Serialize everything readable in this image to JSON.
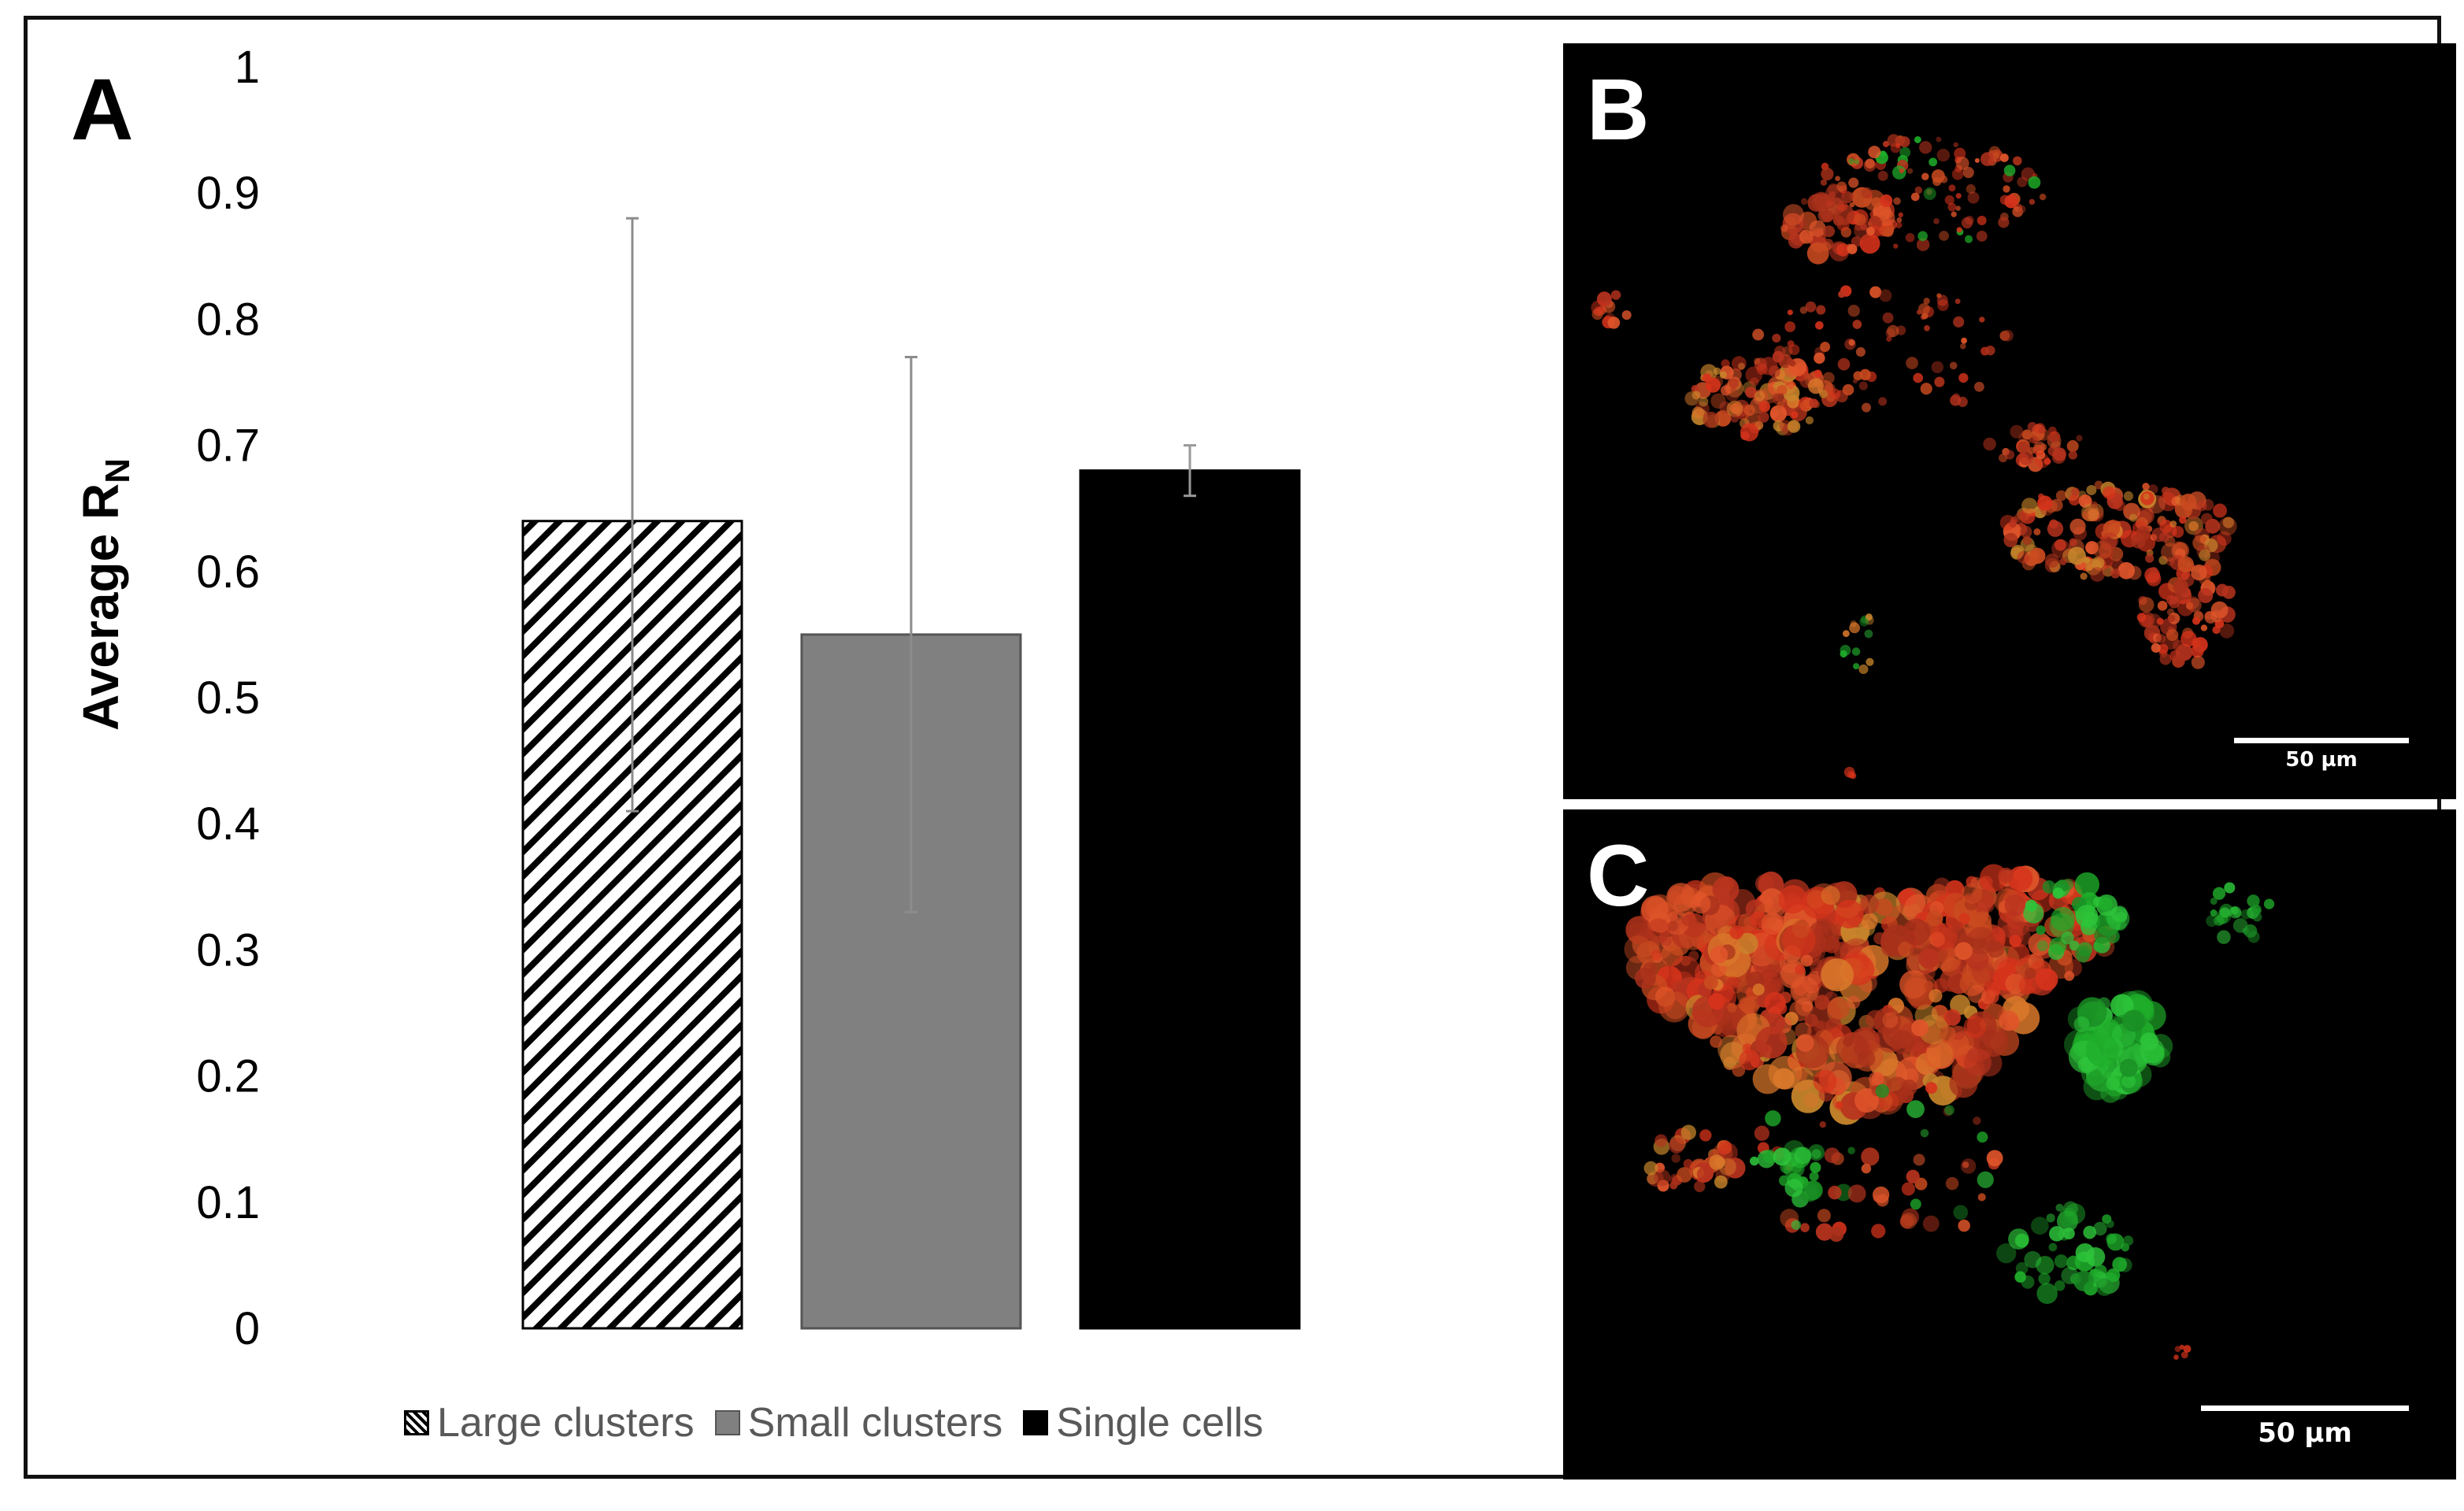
{
  "panels": {
    "a": "A",
    "b": "B",
    "c": "C"
  },
  "chart_data": {
    "type": "bar",
    "title": "",
    "xlabel": "",
    "ylabel": "Average R",
    "ylabel_subscript": "N",
    "ylim": [
      0,
      1
    ],
    "yticks": [
      "0",
      "0.1",
      "0.2",
      "0.3",
      "0.4",
      "0.5",
      "0.6",
      "0.7",
      "0.8",
      "0.9",
      "1"
    ],
    "grid": false,
    "legend_position": "bottom",
    "categories": [
      "Large clusters",
      "Small clusters",
      "Single cells"
    ],
    "values": [
      0.64,
      0.55,
      0.68
    ],
    "error_low": [
      0.41,
      0.33,
      0.66
    ],
    "error_high": [
      0.88,
      0.77,
      0.7
    ],
    "fills": [
      "hatch",
      "#808080",
      "#000000"
    ]
  },
  "micrographs": {
    "b": {
      "scale_label": "50 µm"
    },
    "c": {
      "scale_label": "50 µm"
    }
  },
  "colors": {
    "cells_red": "#d6331b",
    "cells_green": "#1fae2a",
    "legend_text": "#595959"
  }
}
